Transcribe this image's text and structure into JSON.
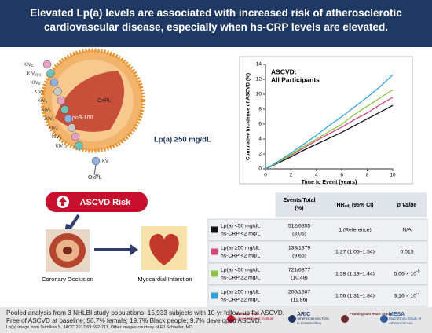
{
  "header": {
    "title": "Elevated Lp(a) levels are associated with increased risk of atherosclerotic cardiovascular disease, especially when hs-CRP levels are elevated."
  },
  "molecule": {
    "apob": "apoB-100",
    "oxpl_core": "OxPL",
    "oxpl_tail": "OxPL",
    "threshold": "Lp(a) ≥50 mg/dL",
    "kringles": [
      {
        "base": "KIV",
        "sub": "1"
      },
      {
        "base": "KIV",
        "sub": "2(n)"
      },
      {
        "base": "KIV",
        "sub": "3"
      },
      {
        "base": "KIV",
        "sub": "4"
      },
      {
        "base": "KIV",
        "sub": "5"
      },
      {
        "base": "KIV",
        "sub": "6"
      },
      {
        "base": "KIV",
        "sub": "7"
      },
      {
        "base": "KIV",
        "sub": "8"
      },
      {
        "base": "KIV",
        "sub": "9"
      },
      {
        "base": "KIV",
        "sub": "10"
      },
      {
        "base": "KV",
        "sub": null
      }
    ]
  },
  "outcomes": {
    "risk": "ASCVD Risk",
    "coronary": "Coronary Occlusion",
    "mi": "Myocardial Infarction"
  },
  "chart": {
    "type": "line",
    "title": [
      "ASCVD:",
      "All Participants"
    ],
    "x_label": "Time to Event (years)",
    "y_label": "Cumulative Incidence of ASCVD (%)",
    "x": [
      0,
      1,
      2,
      3,
      4,
      5,
      6,
      7,
      8,
      9,
      10
    ],
    "xlim": [
      0,
      10
    ],
    "xticks": [
      0,
      2,
      4,
      6,
      8,
      10
    ],
    "ylim": [
      0,
      14
    ],
    "yticks": [
      0,
      2,
      4,
      6,
      8,
      10,
      12,
      14
    ],
    "series": [
      {
        "color": "#111111",
        "values": [
          0,
          0.8,
          1.6,
          2.5,
          3.3,
          4.1,
          4.9,
          5.8,
          6.7,
          7.6,
          8.5
        ]
      },
      {
        "color": "#d6457f",
        "values": [
          0,
          0.9,
          1.8,
          2.8,
          3.8,
          4.7,
          5.6,
          6.6,
          7.5,
          8.6,
          9.6
        ]
      },
      {
        "color": "#8cc63f",
        "values": [
          0,
          0.9,
          1.9,
          3.0,
          4.0,
          5.0,
          6.0,
          7.3,
          8.4,
          9.5,
          10.6
        ]
      },
      {
        "color": "#2ea3dc",
        "values": [
          0,
          1.0,
          2.1,
          3.3,
          4.5,
          5.8,
          7.0,
          8.3,
          9.6,
          11.0,
          12.6
        ]
      }
    ]
  },
  "table": {
    "header": {
      "events": [
        "Events/Total",
        "(%)"
      ],
      "hr": {
        "base": "HR",
        "sub": "adj",
        "rest": " (95% CI)"
      },
      "p": "p Value"
    },
    "rows": [
      {
        "color": "#111111",
        "group": [
          "Lp(a) <50 mg/dL",
          "hs-CRP <2 mg/L"
        ],
        "events": [
          "512/6355",
          "(8.06)"
        ],
        "hr": "1 (Reference)",
        "p": {
          "base": "N/A",
          "exp": null
        }
      },
      {
        "color": "#d6457f",
        "group": [
          "Lp(a) ≥50 mg/dL",
          "hs-CRP <2 mg/L"
        ],
        "events": [
          "133/1379",
          "(9.65)"
        ],
        "hr": "1.27 (1.05–1.54)",
        "p": {
          "base": "0.015",
          "exp": null
        }
      },
      {
        "color": "#8cc63f",
        "group": [
          "Lp(a) <50 mg/dL",
          "hs-CRP ≥2 mg/L"
        ],
        "events": [
          "721/6877",
          "(10.48)"
        ],
        "hr": "1.28 (1.13–1.44)",
        "p": {
          "base": "5.06 × 10",
          "exp": "-5"
        }
      },
      {
        "color": "#2ea3dc",
        "group": [
          "Lp(a) ≥50 mg/dL",
          "hs-CRP ≥2 mg/L"
        ],
        "events": [
          "200/1687",
          "(11.86)"
        ],
        "hr": "1.56 (1.31–1.84)",
        "p": {
          "base": "3.16 × 10",
          "exp": "-7"
        }
      }
    ]
  },
  "footer": {
    "summary": [
      "Pooled analysis from 3 NHLBI study populations: 15,933 subjects with 10-yr follow-up for ASCVD.",
      "Free of ASCVD at baseline; 56.7% female; 19.7% Black people; 9.7% developed ASCVD."
    ],
    "credit": "Lp(a) image from Tsimikas S, JACC 2017;69:692-711, Other images courtesy of EJ Schaefer, MD.",
    "logos": [
      [
        "National Heart",
        "Lung and Blood Institute"
      ],
      [
        "ARIC",
        "Atherosclerosis Risk",
        "in Communities"
      ],
      [
        "Framingham Heart Study"
      ],
      [
        "MESA",
        "Multi-Ethnic Study of",
        "Atherosclerosis"
      ]
    ]
  }
}
